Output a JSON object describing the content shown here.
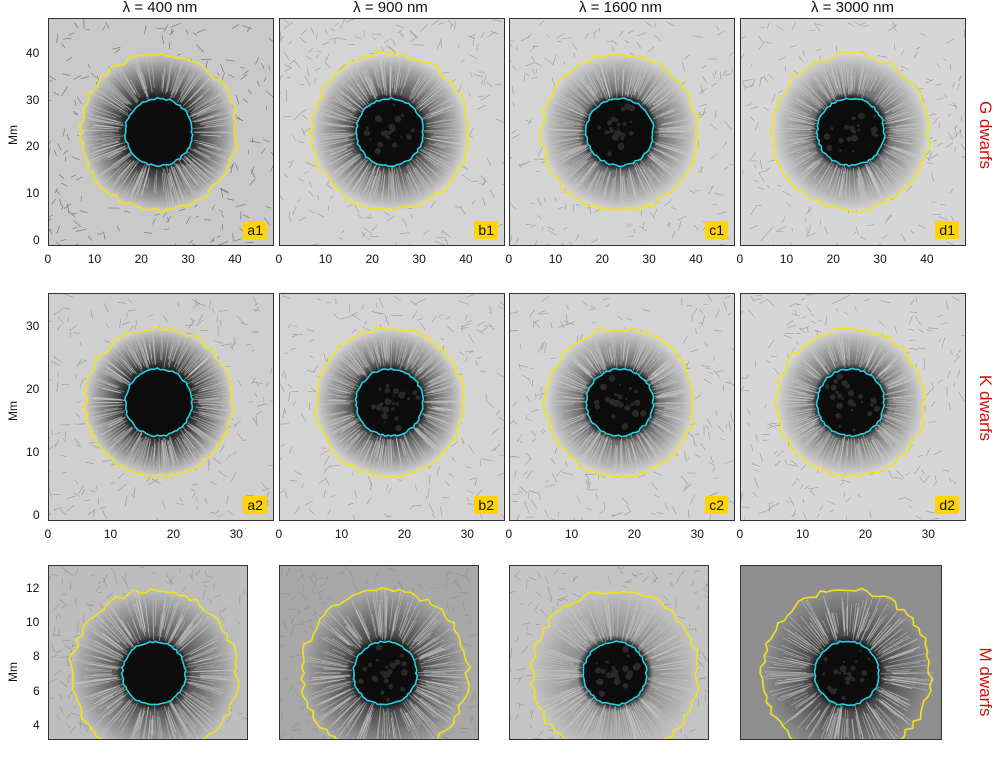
{
  "figure": {
    "column_titles": [
      "λ = 400 nm",
      "λ = 900 nm",
      "λ = 1600 nm",
      "λ = 3000 nm"
    ],
    "row_titles": [
      "G dwarfs",
      "K dwarfs",
      "M dwarfs"
    ],
    "y_axis_label": "Mm",
    "panel_labels": [
      [
        "a1",
        "b1",
        "c1",
        "d1"
      ],
      [
        "a2",
        "b2",
        "c2",
        "d2"
      ],
      [
        "",
        "",
        "",
        ""
      ]
    ],
    "rows": [
      {
        "xticks": [
          "0",
          "10",
          "20",
          "30",
          "40"
        ],
        "yticks": [
          "0",
          "10",
          "20",
          "30",
          "40"
        ]
      },
      {
        "xticks": [
          "0",
          "10",
          "20",
          "30"
        ],
        "yticks": [
          "0",
          "10",
          "20",
          "30"
        ]
      },
      {
        "xticks": [],
        "yticks": [
          "4",
          "6",
          "8",
          "10",
          "12"
        ]
      }
    ],
    "colors": {
      "outer_contour": "#f2e21a",
      "inner_contour": "#22d3e6",
      "row_title": "#d01010",
      "label_bg": "#ffd400"
    }
  }
}
